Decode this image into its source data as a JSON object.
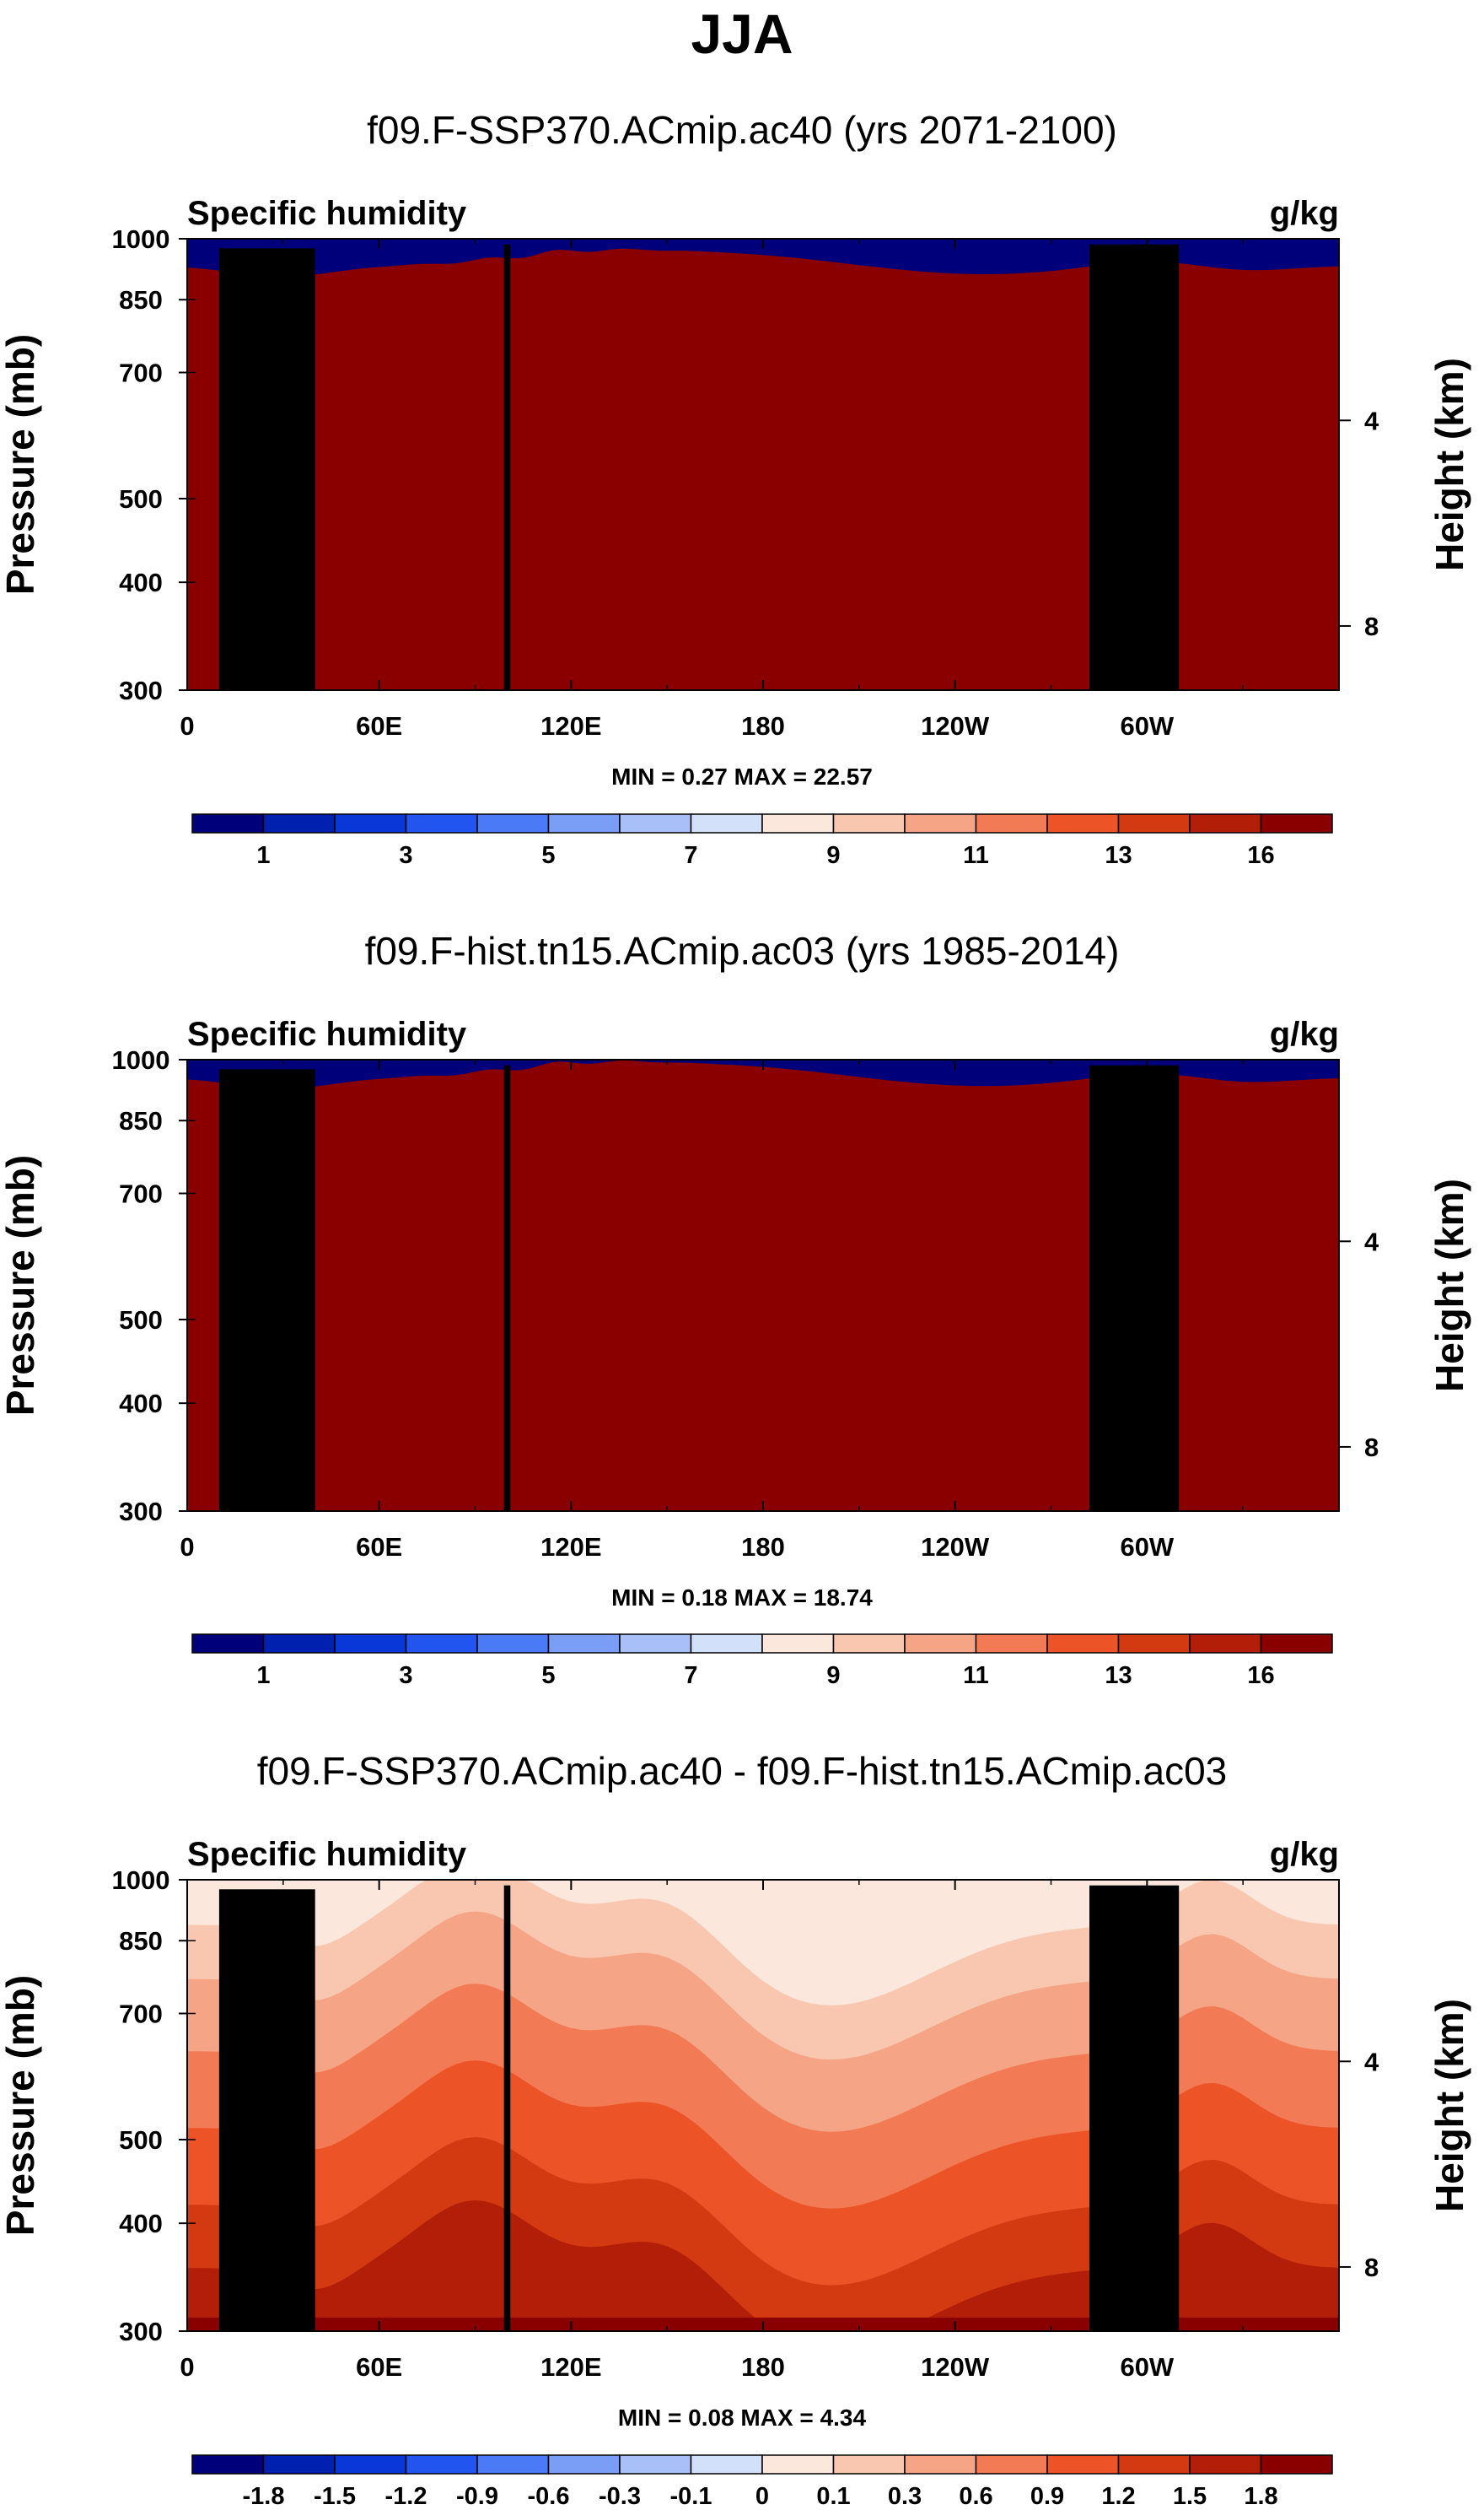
{
  "title": "JJA",
  "colors": {
    "abs_levels": [
      "#00007a",
      "#0020b0",
      "#0a38d8",
      "#2255f0",
      "#4a7af5",
      "#7a9ef5",
      "#a8c0f7",
      "#d2e0fa",
      "#fbe7dc",
      "#f9c7b0",
      "#f5a585",
      "#f27a55",
      "#ec5428",
      "#d43a12",
      "#b21e08",
      "#8a0000"
    ],
    "diff_levels": [
      "#00007a",
      "#0020b0",
      "#0a38d8",
      "#2255f0",
      "#4a7af5",
      "#7a9ef5",
      "#a8c0f7",
      "#d2e0fa",
      "#ffffff",
      "#fbe7dc",
      "#f9c7b0",
      "#f5a585",
      "#f27a55",
      "#ec5428",
      "#d43a12",
      "#b21e08",
      "#8a0000"
    ],
    "topography": "#000000"
  },
  "chart_data": [
    {
      "type": "contour",
      "title": "f09.F-SSP370.ACmip.ac40 (yrs 2071-2100)",
      "left_label": "Specific humidity",
      "right_label": "g/kg",
      "xlabel": "",
      "ylabel": "Pressure (mb)",
      "ylabel_right": "Height (km)",
      "x_ticks": [
        "0",
        "60E",
        "120E",
        "180",
        "120W",
        "60W"
      ],
      "x_tick_lon": [
        0,
        60,
        120,
        180,
        240,
        300
      ],
      "xlim": [
        0,
        360
      ],
      "y_ticks": [
        "300",
        "400",
        "500",
        "700",
        "850",
        "1000"
      ],
      "y_tick_values": [
        300,
        400,
        500,
        700,
        850,
        1000
      ],
      "ylim": [
        1000,
        300
      ],
      "height_ticks": [
        "8",
        "4"
      ],
      "height_tick_pressure": [
        356,
        616
      ],
      "minmax_text": "MIN =   0.27  MAX =  22.57",
      "colorbar_labels": [
        "1",
        "3",
        "5",
        "7",
        "9",
        "11",
        "13",
        "16"
      ],
      "colorbar_label_boundaries": [
        1,
        3,
        5,
        7,
        9,
        11,
        13,
        15
      ],
      "colorbar_boxes": 16,
      "field": "abs_future"
    },
    {
      "type": "contour",
      "title": "f09.F-hist.tn15.ACmip.ac03 (yrs 1985-2014)",
      "left_label": "Specific humidity",
      "right_label": "g/kg",
      "xlabel": "",
      "ylabel": "Pressure (mb)",
      "ylabel_right": "Height (km)",
      "x_ticks": [
        "0",
        "60E",
        "120E",
        "180",
        "120W",
        "60W"
      ],
      "x_tick_lon": [
        0,
        60,
        120,
        180,
        240,
        300
      ],
      "xlim": [
        0,
        360
      ],
      "y_ticks": [
        "300",
        "400",
        "500",
        "700",
        "850",
        "1000"
      ],
      "y_tick_values": [
        300,
        400,
        500,
        700,
        850,
        1000
      ],
      "ylim": [
        1000,
        300
      ],
      "height_ticks": [
        "8",
        "4"
      ],
      "height_tick_pressure": [
        356,
        616
      ],
      "minmax_text": "MIN =   0.18  MAX =  18.74",
      "colorbar_labels": [
        "1",
        "3",
        "5",
        "7",
        "9",
        "11",
        "13",
        "16"
      ],
      "colorbar_label_boundaries": [
        1,
        3,
        5,
        7,
        9,
        11,
        13,
        15
      ],
      "colorbar_boxes": 16,
      "field": "abs_hist"
    },
    {
      "type": "contour",
      "title": "f09.F-SSP370.ACmip.ac40 - f09.F-hist.tn15.ACmip.ac03",
      "left_label": "Specific humidity",
      "right_label": "g/kg",
      "xlabel": "",
      "ylabel": "Pressure (mb)",
      "ylabel_right": "Height (km)",
      "x_ticks": [
        "0",
        "60E",
        "120E",
        "180",
        "120W",
        "60W"
      ],
      "x_tick_lon": [
        0,
        60,
        120,
        180,
        240,
        300
      ],
      "xlim": [
        0,
        360
      ],
      "y_ticks": [
        "300",
        "400",
        "500",
        "700",
        "850",
        "1000"
      ],
      "y_tick_values": [
        300,
        400,
        500,
        700,
        850,
        1000
      ],
      "ylim": [
        1000,
        300
      ],
      "height_ticks": [
        "8",
        "4"
      ],
      "height_tick_pressure": [
        356,
        616
      ],
      "minmax_text": "MIN =   0.08  MAX =   4.34",
      "colorbar_labels": [
        "-1.8",
        "-1.5",
        "-1.2",
        "-0.9",
        "-0.6",
        "-0.3",
        "-0.1",
        "0",
        "0.1",
        "0.3",
        "0.6",
        "0.9",
        "1.2",
        "1.5",
        "1.8"
      ],
      "colorbar_label_boundaries": [
        1,
        2,
        3,
        4,
        5,
        6,
        7,
        8,
        9,
        10,
        11,
        12,
        13,
        14,
        15
      ],
      "colorbar_boxes": 16,
      "field": "diff"
    }
  ]
}
